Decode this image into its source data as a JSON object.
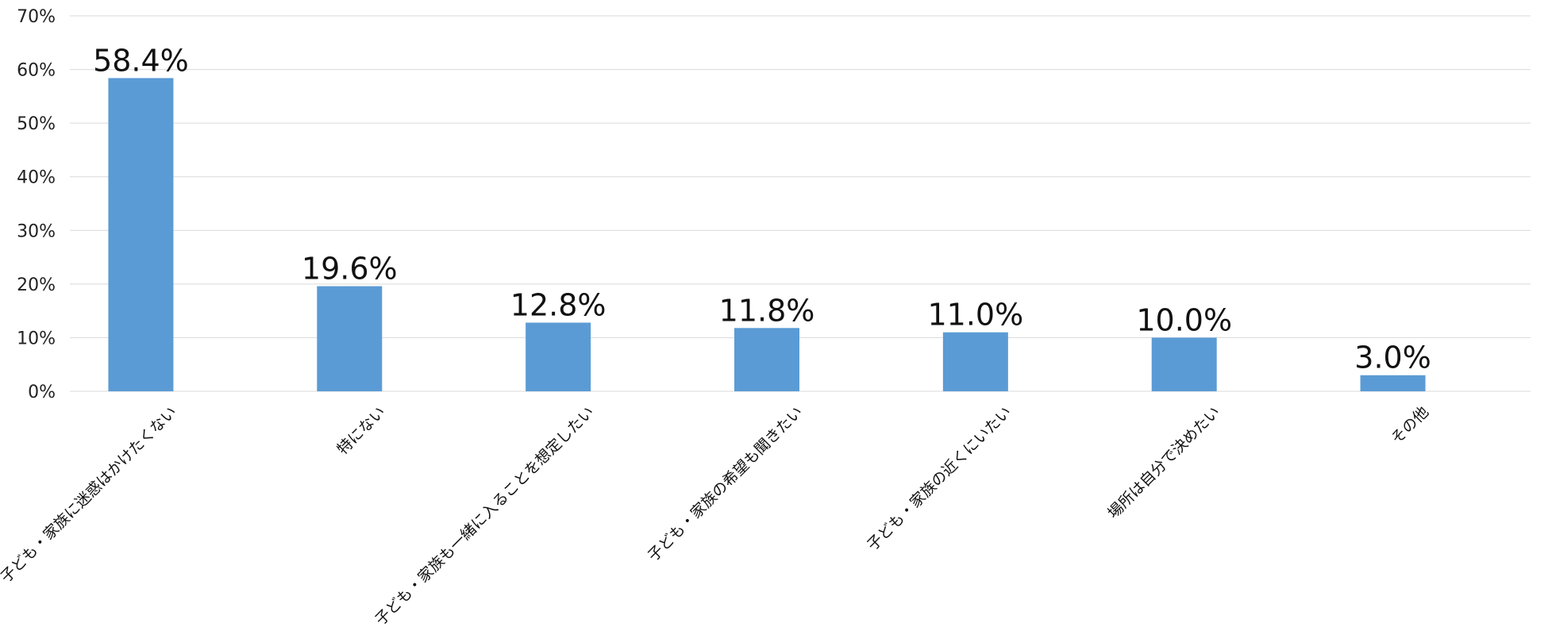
{
  "chart_data": {
    "type": "bar",
    "categories": [
      "子ども・家族に迷惑はかけたくない",
      "特にない",
      "子ども・家族も一緒に入ることを想定したい",
      "子ども・家族の希望も聞きたい",
      "子ども・家族の近くにいたい",
      "場所は自分で決めたい",
      "その他"
    ],
    "values": [
      58.4,
      19.6,
      12.8,
      11.8,
      11.0,
      10.0,
      3.0
    ],
    "data_labels": [
      "58.4%",
      "19.6%",
      "12.8%",
      "11.8%",
      "11.0%",
      "10.0%",
      "3.0%"
    ],
    "ylim": [
      0,
      70
    ],
    "yticks": [
      0,
      10,
      20,
      30,
      40,
      50,
      60,
      70
    ],
    "ytick_labels": [
      "0%",
      "10%",
      "20%",
      "30%",
      "40%",
      "50%",
      "60%",
      "70%"
    ],
    "grid": true,
    "bar_color": "#5b9bd5"
  }
}
